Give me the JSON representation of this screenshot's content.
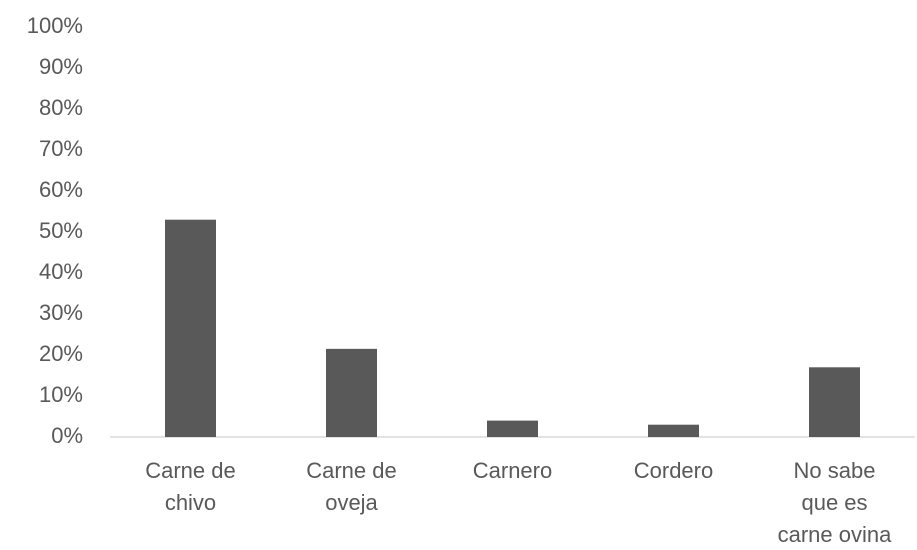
{
  "chart_data": {
    "type": "bar",
    "categories": [
      "Carne de chivo",
      "Carne de oveja",
      "Carnero",
      "Cordero",
      "No sabe que es carne ovina"
    ],
    "values": [
      53,
      21.5,
      4,
      3,
      17
    ],
    "color": "#595959",
    "ylim": [
      0,
      100
    ],
    "yticks": [
      {
        "value": 0,
        "label": "0%"
      },
      {
        "value": 10,
        "label": "10%"
      },
      {
        "value": 20,
        "label": "20%"
      },
      {
        "value": 30,
        "label": "30%"
      },
      {
        "value": 40,
        "label": "40%"
      },
      {
        "value": 50,
        "label": "50%"
      },
      {
        "value": 60,
        "label": "60%"
      },
      {
        "value": 70,
        "label": "70%"
      },
      {
        "value": 80,
        "label": "80%"
      },
      {
        "value": 90,
        "label": "90%"
      },
      {
        "value": 100,
        "label": "100%"
      }
    ],
    "grid": false
  }
}
